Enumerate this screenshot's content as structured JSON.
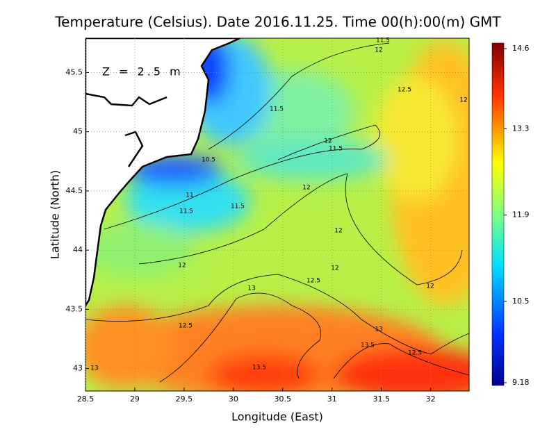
{
  "title": "Temperature (Celsius). Date 2016.11.25. Time 00(h):00(m)  GMT",
  "annotation": "Z = 2.5 m",
  "map": {
    "xlabel": "Longitude (East)",
    "ylabel": "Latitude (North)",
    "xlim": [
      28.5,
      32.39
    ],
    "ylim": [
      42.81,
      45.79
    ],
    "xticks": [
      28.5,
      29,
      29.5,
      30,
      30.5,
      31,
      31.5,
      32
    ],
    "yticks": [
      43,
      43.5,
      44,
      44.5,
      45,
      45.5
    ],
    "grid": true,
    "contour_labels": [
      11.5,
      12,
      12.5,
      12,
      11.5,
      12,
      11.5,
      10.5,
      12,
      11,
      11.5,
      11.5,
      12,
      12,
      12,
      12.5,
      12,
      13,
      12.5,
      13,
      13.5,
      12.5,
      13,
      13.5
    ]
  },
  "colorbar": {
    "lim": [
      9.18,
      14.6
    ],
    "ticks": [
      14.6,
      13.3,
      11.9,
      10.5,
      9.18
    ]
  }
}
